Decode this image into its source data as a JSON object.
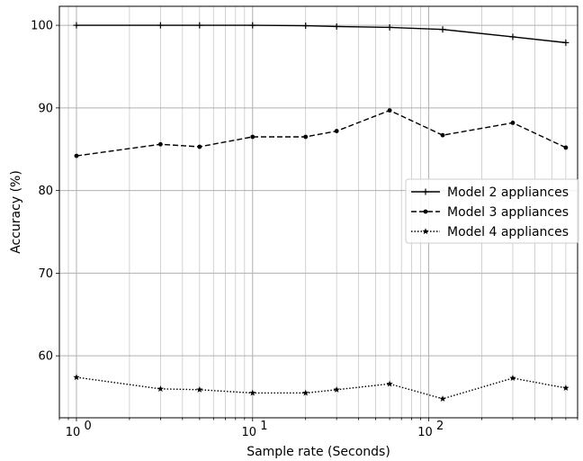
{
  "chart_data": {
    "type": "line",
    "xscale": "log",
    "xlabel": "Sample rate (Seconds)",
    "ylabel": "Accuracy (%)",
    "xlim": [
      0.8,
      700
    ],
    "ylim": [
      52.5,
      102.3
    ],
    "xticks": [
      1,
      10,
      100
    ],
    "xtick_labels": [
      "10",
      "10",
      "10"
    ],
    "xtick_exponents": [
      "0",
      "1",
      "2"
    ],
    "yticks": [
      60,
      70,
      80,
      90,
      100
    ],
    "ytick_labels": [
      "60",
      "70",
      "80",
      "90",
      "100"
    ],
    "grid": true,
    "grid_which": "both",
    "legend_position": "center-right",
    "x": [
      1,
      3,
      5,
      10,
      20,
      30,
      60,
      120,
      300,
      600
    ],
    "series": [
      {
        "name": "Model 2 appliances",
        "line_style": "solid",
        "marker": "plus",
        "color": "#000000",
        "values": [
          100,
          100,
          100,
          100,
          99.95,
          99.85,
          99.75,
          99.5,
          98.6,
          97.9
        ]
      },
      {
        "name": "Model 3 appliances",
        "line_style": "dashed",
        "marker": "point",
        "color": "#000000",
        "values": [
          84.2,
          85.6,
          85.3,
          86.5,
          86.5,
          87.2,
          89.7,
          86.7,
          88.2,
          85.2
        ]
      },
      {
        "name": "Model 4 appliances",
        "line_style": "dotted",
        "marker": "star",
        "color": "#000000",
        "values": [
          57.4,
          56.0,
          55.9,
          55.5,
          55.5,
          55.9,
          56.6,
          54.8,
          57.3,
          56.1
        ]
      }
    ]
  }
}
